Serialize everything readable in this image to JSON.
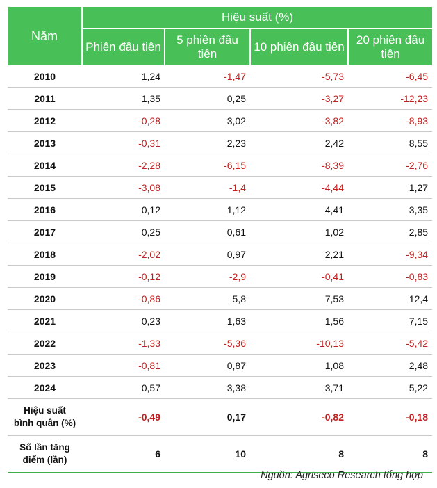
{
  "header": {
    "year_label": "Năm",
    "performance_label": "Hiệu suất (%)",
    "columns": [
      "Phiên đầu tiên",
      "5 phiên đầu tiên",
      "10 phiên đầu tiên",
      "20 phiên đầu tiên"
    ]
  },
  "rows": [
    {
      "year": "2010",
      "values": [
        "1,24",
        "-1,47",
        "-5,73",
        "-6,45"
      ]
    },
    {
      "year": "2011",
      "values": [
        "1,35",
        "0,25",
        "-3,27",
        "-12,23"
      ]
    },
    {
      "year": "2012",
      "values": [
        "-0,28",
        "3,02",
        "-3,82",
        "-8,93"
      ]
    },
    {
      "year": "2013",
      "values": [
        "-0,31",
        "2,23",
        "2,42",
        "8,55"
      ]
    },
    {
      "year": "2014",
      "values": [
        "-2,28",
        "-6,15",
        "-8,39",
        "-2,76"
      ]
    },
    {
      "year": "2015",
      "values": [
        "-3,08",
        "-1,4",
        "-4,44",
        "1,27"
      ]
    },
    {
      "year": "2016",
      "values": [
        "0,12",
        "1,12",
        "4,41",
        "3,35"
      ]
    },
    {
      "year": "2017",
      "values": [
        "0,25",
        "0,61",
        "1,02",
        "2,85"
      ]
    },
    {
      "year": "2018",
      "values": [
        "-2,02",
        "0,97",
        "2,21",
        "-9,34"
      ]
    },
    {
      "year": "2019",
      "values": [
        "-0,12",
        "-2,9",
        "-0,41",
        "-0,83"
      ]
    },
    {
      "year": "2020",
      "values": [
        "-0,86",
        "5,8",
        "7,53",
        "12,4"
      ]
    },
    {
      "year": "2021",
      "values": [
        "0,23",
        "1,63",
        "1,56",
        "7,15"
      ]
    },
    {
      "year": "2022",
      "values": [
        "-1,33",
        "-5,36",
        "-10,13",
        "-5,42"
      ]
    },
    {
      "year": "2023",
      "values": [
        "-0,81",
        "0,87",
        "1,08",
        "2,48"
      ]
    },
    {
      "year": "2024",
      "values": [
        "0,57",
        "3,38",
        "3,71",
        "5,22"
      ]
    }
  ],
  "summary": [
    {
      "label": "Hiệu suất\nbình quân (%)",
      "values": [
        "-0,49",
        "0,17",
        "-0,82",
        "-0,18"
      ]
    },
    {
      "label": "Số lần tăng\nđiểm (lần)",
      "values": [
        "6",
        "10",
        "8",
        "8"
      ]
    }
  ],
  "source": "Nguồn: Agriseco Research tổng hợp",
  "colors": {
    "header_bg": "#49bf57",
    "negative": "#c0201f",
    "text": "#111111"
  }
}
